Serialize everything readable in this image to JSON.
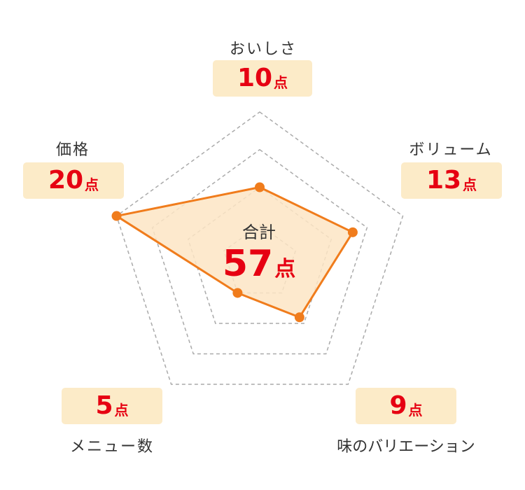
{
  "chart_data": {
    "type": "radar",
    "scale_max": 20,
    "grid_levels": [
      5,
      10,
      15,
      20
    ],
    "unit": "点",
    "categories": [
      "おいしさ",
      "ボリューム",
      "味のバリエーション",
      "メニュー数",
      "価格"
    ],
    "values": [
      10,
      13,
      9,
      5,
      20
    ],
    "total_label": "合計",
    "total_value": 57,
    "colors": {
      "line": "#f07c1c",
      "fill": "#fde5c4",
      "grid": "#aaaaaa",
      "score": "#e60012",
      "box": "#fcebc8"
    }
  }
}
